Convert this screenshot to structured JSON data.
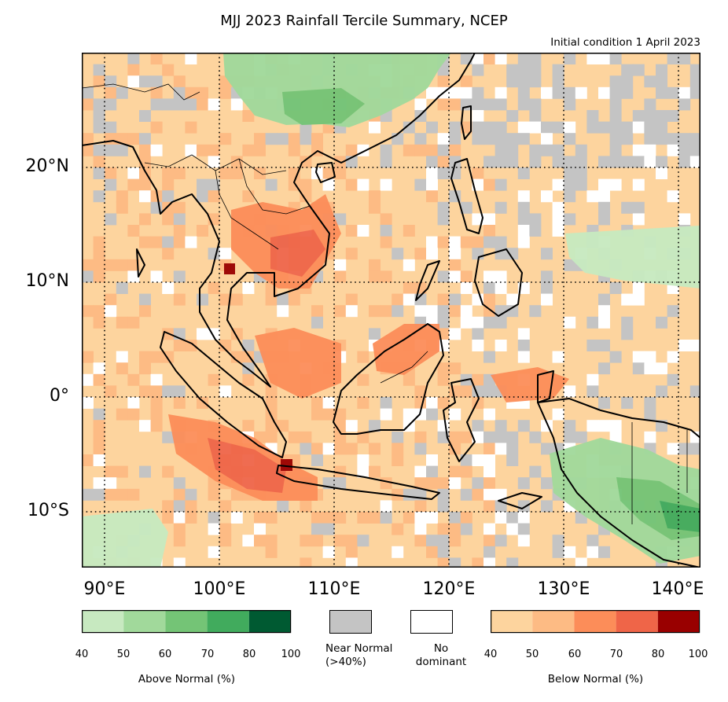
{
  "title": "MJJ 2023 Rainfall Tercile Summary, NCEP",
  "subtitle": "Initial condition 1 April 2023",
  "lat_labels": [
    "20°N",
    "10°N",
    "0°",
    "10°S"
  ],
  "lon_labels": [
    "90°E",
    "100°E",
    "110°E",
    "120°E",
    "130°E",
    "140°E"
  ],
  "legend": {
    "above": {
      "caption": "Above Normal (%)",
      "ticks": [
        "40",
        "50",
        "60",
        "70",
        "80",
        "100"
      ],
      "colors": [
        "#c7e9c0",
        "#a1d99b",
        "#74c476",
        "#41ab5d",
        "#005a32"
      ]
    },
    "near_normal": {
      "line1": "Near Normal",
      "line2": "(>40%)",
      "color": "#c4c4c4"
    },
    "no_dominant": {
      "line1": "No",
      "line2": "dominant",
      "color": "#ffffff"
    },
    "below": {
      "caption": "Below Normal (%)",
      "ticks": [
        "40",
        "50",
        "60",
        "70",
        "80",
        "100"
      ],
      "colors": [
        "#fdd49e",
        "#fdbb84",
        "#fc8d59",
        "#ef6548",
        "#990000"
      ]
    }
  },
  "map_colors": {
    "b1": "#fdd49e",
    "b2": "#fdbb84",
    "b3": "#fc8d59",
    "b4": "#ef6548",
    "b5": "#990000",
    "a1": "#c7e9c0",
    "a2": "#a1d99b",
    "a3": "#74c476",
    "a4": "#41ab5d",
    "n": "#c4c4c4",
    "w": "#ffffff"
  }
}
